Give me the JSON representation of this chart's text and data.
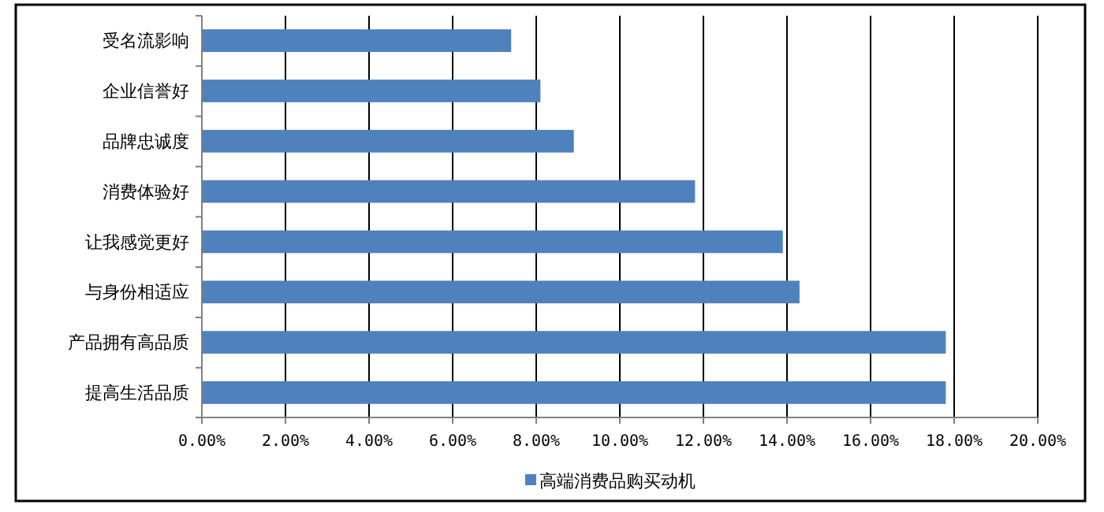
{
  "chart_data": {
    "type": "bar",
    "orientation": "horizontal",
    "categories": [
      "受名流影响",
      "企业信誉好",
      "品牌忠诚度",
      "消费体验好",
      "让我感觉更好",
      "与身份相适应",
      "产品拥有高品质",
      "提高生活品质"
    ],
    "series": [
      {
        "name": "高端消费品购买动机",
        "color": "#4f81bd",
        "values": [
          7.4,
          8.1,
          8.9,
          11.8,
          13.9,
          14.3,
          17.8,
          17.8
        ]
      }
    ],
    "xlim": [
      0,
      20
    ],
    "xticks": [
      {
        "value": 0,
        "label": "0.00%"
      },
      {
        "value": 2,
        "label": "2.00%"
      },
      {
        "value": 4,
        "label": "4.00%"
      },
      {
        "value": 6,
        "label": "6.00%"
      },
      {
        "value": 8,
        "label": "8.00%"
      },
      {
        "value": 10,
        "label": "10.00%"
      },
      {
        "value": 12,
        "label": "12.00%"
      },
      {
        "value": 14,
        "label": "14.00%"
      },
      {
        "value": 16,
        "label": "16.00%"
      },
      {
        "value": 18,
        "label": "18.00%"
      },
      {
        "value": 20,
        "label": "20.00%"
      }
    ],
    "grid": "x",
    "legend": "bottom"
  }
}
